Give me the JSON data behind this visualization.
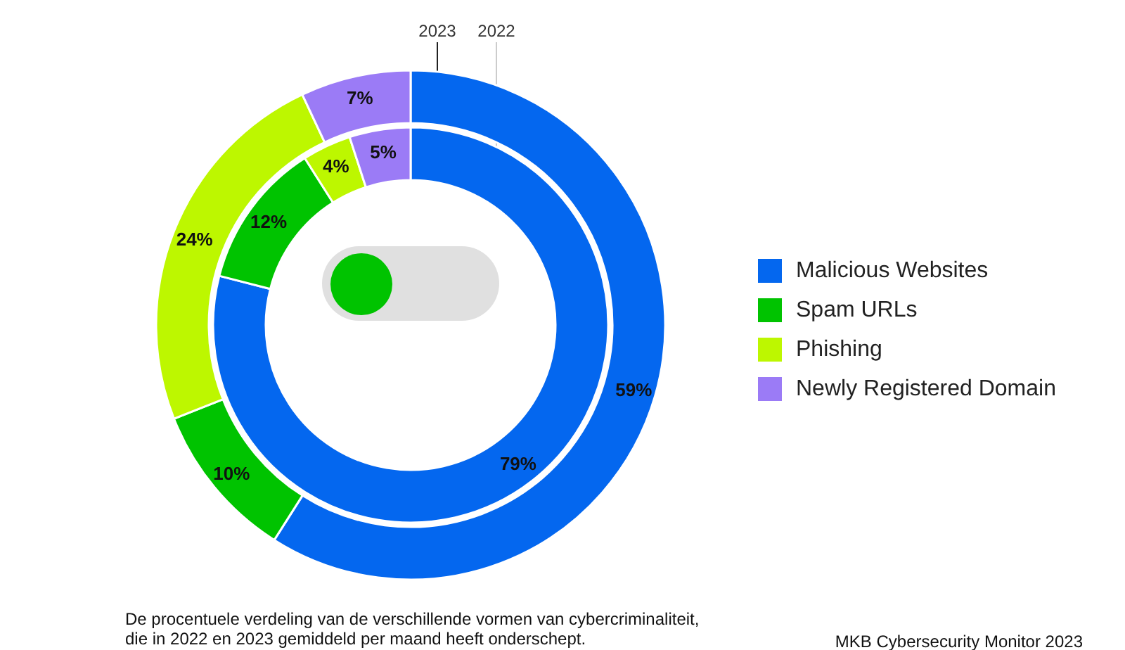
{
  "chart_data": {
    "type": "donut",
    "categories": [
      "Malicious Websites",
      "Spam URLs",
      "Phishing",
      "Newly Registered Domain"
    ],
    "colors": [
      "#0467ef",
      "#00c300",
      "#bdf700",
      "#9b7bf6"
    ],
    "series": [
      {
        "name": "2022",
        "values": [
          79,
          12,
          4,
          5
        ],
        "value_labels": [
          "79%",
          "12%",
          "4%",
          "5%"
        ]
      },
      {
        "name": "2023",
        "values": [
          59,
          10,
          24,
          7
        ],
        "value_labels": [
          "59%",
          "10%",
          "24%",
          "7%"
        ]
      }
    ],
    "legend": "right",
    "annotations": [
      "De procentuele verdeling van de verschillende vormen van cybercriminaliteit,\ndie in 2022 en 2023 gemiddeld per maand heeft onderschept.",
      "MKB Cybersecurity Monitor 2023"
    ]
  }
}
